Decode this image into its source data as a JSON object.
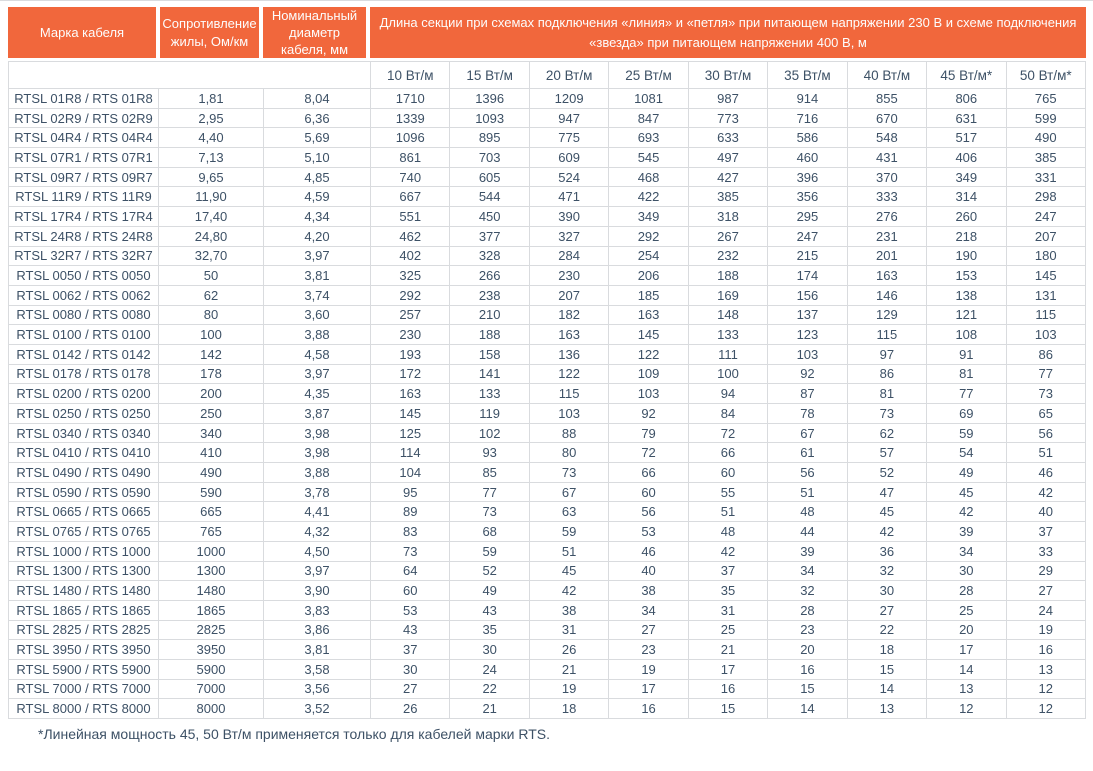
{
  "colors": {
    "accent_orange": "#f1673c",
    "header_text": "#fdfdfd",
    "body_text": "#3d5166",
    "border": "#d9dbde"
  },
  "table": {
    "header": {
      "brand": "Марка кабеля",
      "resistance": "Сопротивление жилы, Ом/км",
      "diameter": "Номинальный диаметр кабеля, мм",
      "merged": "Длина секции при схемах подключения «линия» и «петля» при питающем напряжении 230 В и схеме подключения «звезда» при питающем напряжении 400 В, м"
    },
    "power_columns": [
      "10 Вт/м",
      "15 Вт/м",
      "20 Вт/м",
      "25 Вт/м",
      "30 Вт/м",
      "35 Вт/м",
      "40 Вт/м",
      "45 Вт/м*",
      "50 Вт/м*"
    ],
    "rows": [
      {
        "brand": "RTSL 01R8 / RTS 01R8",
        "resistance": "1,81",
        "diameter": "8,04",
        "lengths": [
          1710,
          1396,
          1209,
          1081,
          987,
          914,
          855,
          806,
          765
        ]
      },
      {
        "brand": "RTSL 02R9 / RTS 02R9",
        "resistance": "2,95",
        "diameter": "6,36",
        "lengths": [
          1339,
          1093,
          947,
          847,
          773,
          716,
          670,
          631,
          599
        ]
      },
      {
        "brand": "RTSL 04R4 / RTS 04R4",
        "resistance": "4,40",
        "diameter": "5,69",
        "lengths": [
          1096,
          895,
          775,
          693,
          633,
          586,
          548,
          517,
          490
        ]
      },
      {
        "brand": "RTSL 07R1 / RTS 07R1",
        "resistance": "7,13",
        "diameter": "5,10",
        "lengths": [
          861,
          703,
          609,
          545,
          497,
          460,
          431,
          406,
          385
        ]
      },
      {
        "brand": "RTSL 09R7 / RTS 09R7",
        "resistance": "9,65",
        "diameter": "4,85",
        "lengths": [
          740,
          605,
          524,
          468,
          427,
          396,
          370,
          349,
          331
        ]
      },
      {
        "brand": "RTSL 11R9 / RTS 11R9",
        "resistance": "11,90",
        "diameter": "4,59",
        "lengths": [
          667,
          544,
          471,
          422,
          385,
          356,
          333,
          314,
          298
        ]
      },
      {
        "brand": "RTSL 17R4 / RTS 17R4",
        "resistance": "17,40",
        "diameter": "4,34",
        "lengths": [
          551,
          450,
          390,
          349,
          318,
          295,
          276,
          260,
          247
        ]
      },
      {
        "brand": "RTSL 24R8 / RTS 24R8",
        "resistance": "24,80",
        "diameter": "4,20",
        "lengths": [
          462,
          377,
          327,
          292,
          267,
          247,
          231,
          218,
          207
        ]
      },
      {
        "brand": "RTSL 32R7 / RTS 32R7",
        "resistance": "32,70",
        "diameter": "3,97",
        "lengths": [
          402,
          328,
          284,
          254,
          232,
          215,
          201,
          190,
          180
        ]
      },
      {
        "brand": "RTSL 0050 / RTS 0050",
        "resistance": "50",
        "diameter": "3,81",
        "lengths": [
          325,
          266,
          230,
          206,
          188,
          174,
          163,
          153,
          145
        ]
      },
      {
        "brand": "RTSL 0062 / RTS 0062",
        "resistance": "62",
        "diameter": "3,74",
        "lengths": [
          292,
          238,
          207,
          185,
          169,
          156,
          146,
          138,
          131
        ]
      },
      {
        "brand": "RTSL 0080 / RTS 0080",
        "resistance": "80",
        "diameter": "3,60",
        "lengths": [
          257,
          210,
          182,
          163,
          148,
          137,
          129,
          121,
          115
        ]
      },
      {
        "brand": "RTSL 0100 / RTS 0100",
        "resistance": "100",
        "diameter": "3,88",
        "lengths": [
          230,
          188,
          163,
          145,
          133,
          123,
          115,
          108,
          103
        ]
      },
      {
        "brand": "RTSL 0142 / RTS 0142",
        "resistance": "142",
        "diameter": "4,58",
        "lengths": [
          193,
          158,
          136,
          122,
          111,
          103,
          97,
          91,
          86
        ]
      },
      {
        "brand": "RTSL 0178 / RTS 0178",
        "resistance": "178",
        "diameter": "3,97",
        "lengths": [
          172,
          141,
          122,
          109,
          100,
          92,
          86,
          81,
          77
        ]
      },
      {
        "brand": "RTSL 0200 / RTS 0200",
        "resistance": "200",
        "diameter": "4,35",
        "lengths": [
          163,
          133,
          115,
          103,
          94,
          87,
          81,
          77,
          73
        ]
      },
      {
        "brand": "RTSL 0250 / RTS 0250",
        "resistance": "250",
        "diameter": "3,87",
        "lengths": [
          145,
          119,
          103,
          92,
          84,
          78,
          73,
          69,
          65
        ]
      },
      {
        "brand": "RTSL 0340 / RTS 0340",
        "resistance": "340",
        "diameter": "3,98",
        "lengths": [
          125,
          102,
          88,
          79,
          72,
          67,
          62,
          59,
          56
        ]
      },
      {
        "brand": "RTSL 0410 / RTS 0410",
        "resistance": "410",
        "diameter": "3,98",
        "lengths": [
          114,
          93,
          80,
          72,
          66,
          61,
          57,
          54,
          51
        ]
      },
      {
        "brand": "RTSL 0490 / RTS 0490",
        "resistance": "490",
        "diameter": "3,88",
        "lengths": [
          104,
          85,
          73,
          66,
          60,
          56,
          52,
          49,
          46
        ]
      },
      {
        "brand": "RTSL 0590 / RTS 0590",
        "resistance": "590",
        "diameter": "3,78",
        "lengths": [
          95,
          77,
          67,
          60,
          55,
          51,
          47,
          45,
          42
        ]
      },
      {
        "brand": "RTSL 0665 / RTS 0665",
        "resistance": "665",
        "diameter": "4,41",
        "lengths": [
          89,
          73,
          63,
          56,
          51,
          48,
          45,
          42,
          40
        ]
      },
      {
        "brand": "RTSL 0765 / RTS 0765",
        "resistance": "765",
        "diameter": "4,32",
        "lengths": [
          83,
          68,
          59,
          53,
          48,
          44,
          42,
          39,
          37
        ]
      },
      {
        "brand": "RTSL 1000 / RTS 1000",
        "resistance": "1000",
        "diameter": "4,50",
        "lengths": [
          73,
          59,
          51,
          46,
          42,
          39,
          36,
          34,
          33
        ]
      },
      {
        "brand": "RTSL 1300 / RTS 1300",
        "resistance": "1300",
        "diameter": "3,97",
        "lengths": [
          64,
          52,
          45,
          40,
          37,
          34,
          32,
          30,
          29
        ]
      },
      {
        "brand": "RTSL 1480 / RTS 1480",
        "resistance": "1480",
        "diameter": "3,90",
        "lengths": [
          60,
          49,
          42,
          38,
          35,
          32,
          30,
          28,
          27
        ]
      },
      {
        "brand": "RTSL 1865 / RTS 1865",
        "resistance": "1865",
        "diameter": "3,83",
        "lengths": [
          53,
          43,
          38,
          34,
          31,
          28,
          27,
          25,
          24
        ]
      },
      {
        "brand": "RTSL 2825 / RTS 2825",
        "resistance": "2825",
        "diameter": "3,86",
        "lengths": [
          43,
          35,
          31,
          27,
          25,
          23,
          22,
          20,
          19
        ]
      },
      {
        "brand": "RTSL 3950 / RTS 3950",
        "resistance": "3950",
        "diameter": "3,81",
        "lengths": [
          37,
          30,
          26,
          23,
          21,
          20,
          18,
          17,
          16
        ]
      },
      {
        "brand": "RTSL 5900 / RTS 5900",
        "resistance": "5900",
        "diameter": "3,58",
        "lengths": [
          30,
          24,
          21,
          19,
          17,
          16,
          15,
          14,
          13
        ]
      },
      {
        "brand": "RTSL 7000 / RTS 7000",
        "resistance": "7000",
        "diameter": "3,56",
        "lengths": [
          27,
          22,
          19,
          17,
          16,
          15,
          14,
          13,
          12
        ]
      },
      {
        "brand": "RTSL 8000 / RTS 8000",
        "resistance": "8000",
        "diameter": "3,52",
        "lengths": [
          26,
          21,
          18,
          16,
          15,
          14,
          13,
          12,
          12
        ]
      }
    ]
  },
  "footnote": "*Линейная мощность 45, 50 Вт/м применяется только для кабелей марки RTS."
}
